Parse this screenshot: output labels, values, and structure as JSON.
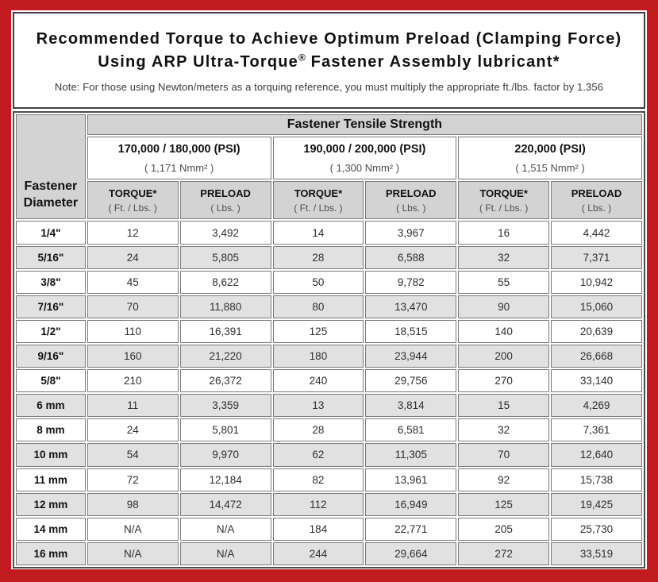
{
  "title": {
    "line1": "Recommended Torque to Achieve Optimum Preload (Clamping Force)",
    "line2_pre": "Using ARP Ultra-Torque",
    "line2_sup": "®",
    "line2_post": " Fastener Assembly lubricant*",
    "note": "Note: For those using Newton/meters as a torquing reference, you must multiply the appropriate ft./lbs. factor by 1.356"
  },
  "colors": {
    "frame_red": "#c11b20",
    "header_gray": "#d3d3d3",
    "alt_row_gray": "#e1e1e1",
    "cell_border": "#7a7a7a"
  },
  "table": {
    "tensile_header": "Fastener Tensile Strength",
    "diameter_header": "Fastener Diameter",
    "groups": [
      {
        "psi": "170,000 / 180,000 (PSI)",
        "nmm": "( 1,171 Nmm² )"
      },
      {
        "psi": "190,000 / 200,000 (PSI)",
        "nmm": "( 1,300 Nmm² )"
      },
      {
        "psi": "220,000 (PSI)",
        "nmm": "( 1,515 Nmm² )"
      }
    ],
    "col_headers": {
      "torque_label": "TORQUE*",
      "torque_unit": "( Ft. / Lbs. )",
      "preload_label": "PRELOAD",
      "preload_unit": "( Lbs. )"
    },
    "rows": [
      {
        "diameter": "1/4\"",
        "values": [
          "12",
          "3,492",
          "14",
          "3,967",
          "16",
          "4,442"
        ]
      },
      {
        "diameter": "5/16\"",
        "values": [
          "24",
          "5,805",
          "28",
          "6,588",
          "32",
          "7,371"
        ]
      },
      {
        "diameter": "3/8\"",
        "values": [
          "45",
          "8,622",
          "50",
          "9,782",
          "55",
          "10,942"
        ]
      },
      {
        "diameter": "7/16\"",
        "values": [
          "70",
          "11,880",
          "80",
          "13,470",
          "90",
          "15,060"
        ]
      },
      {
        "diameter": "1/2\"",
        "values": [
          "110",
          "16,391",
          "125",
          "18,515",
          "140",
          "20,639"
        ]
      },
      {
        "diameter": "9/16\"",
        "values": [
          "160",
          "21,220",
          "180",
          "23,944",
          "200",
          "26,668"
        ]
      },
      {
        "diameter": "5/8\"",
        "values": [
          "210",
          "26,372",
          "240",
          "29,756",
          "270",
          "33,140"
        ]
      },
      {
        "diameter": "6 mm",
        "values": [
          "11",
          "3,359",
          "13",
          "3,814",
          "15",
          "4,269"
        ]
      },
      {
        "diameter": "8 mm",
        "values": [
          "24",
          "5,801",
          "28",
          "6,581",
          "32",
          "7,361"
        ]
      },
      {
        "diameter": "10 mm",
        "values": [
          "54",
          "9,970",
          "62",
          "11,305",
          "70",
          "12,640"
        ]
      },
      {
        "diameter": "11 mm",
        "values": [
          "72",
          "12,184",
          "82",
          "13,961",
          "92",
          "15,738"
        ]
      },
      {
        "diameter": "12 mm",
        "values": [
          "98",
          "14,472",
          "112",
          "16,949",
          "125",
          "19,425"
        ]
      },
      {
        "diameter": "14 mm",
        "values": [
          "N/A",
          "N/A",
          "184",
          "22,771",
          "205",
          "25,730"
        ]
      },
      {
        "diameter": "16 mm",
        "values": [
          "N/A",
          "N/A",
          "244",
          "29,664",
          "272",
          "33,519"
        ]
      }
    ]
  }
}
